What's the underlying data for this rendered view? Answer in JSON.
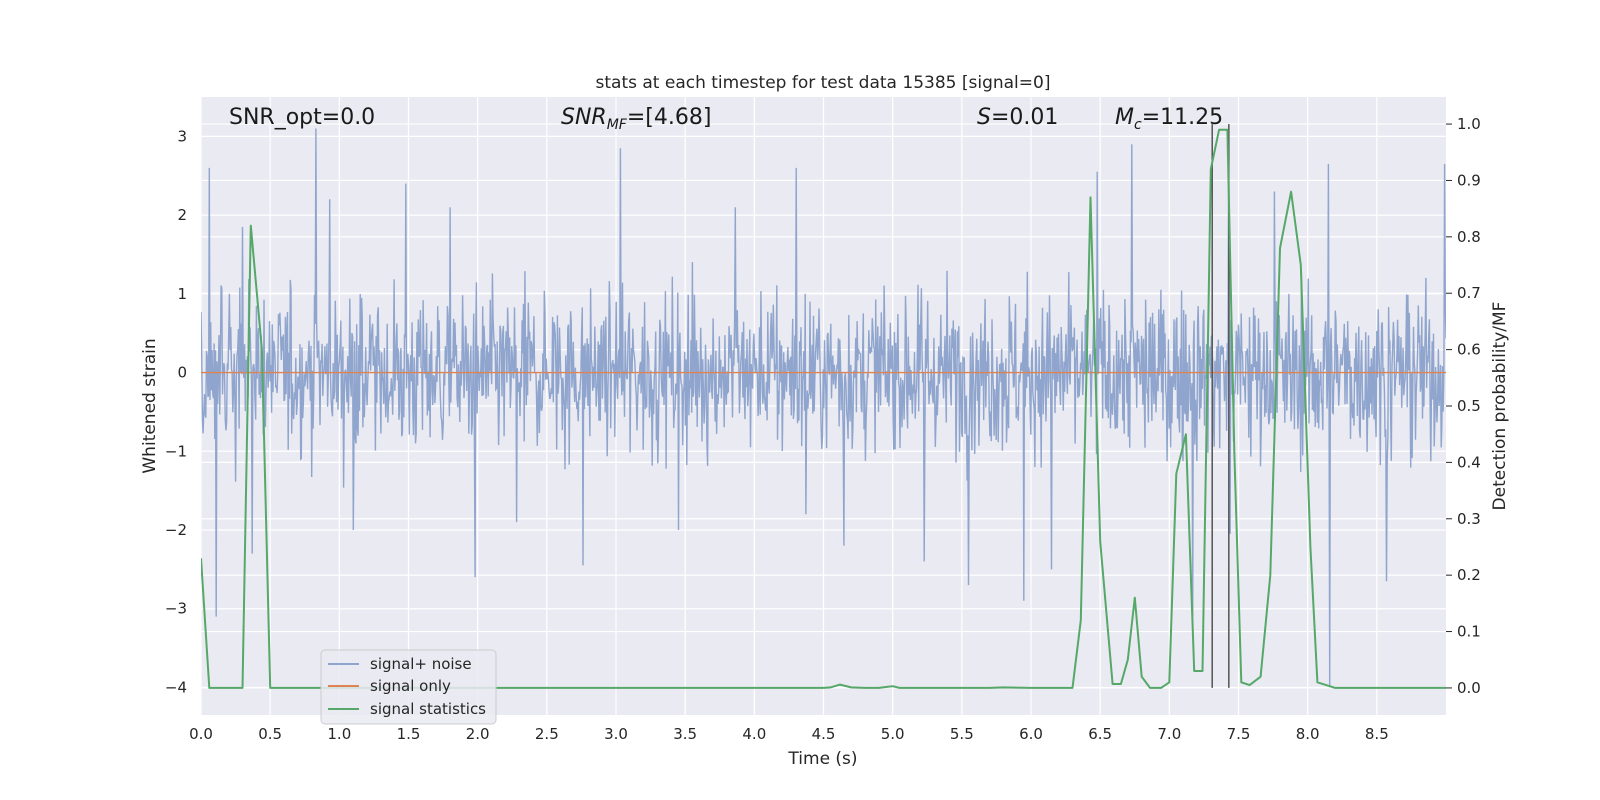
{
  "chart_data": {
    "type": "line",
    "title": "stats at each timestep for test data 15385 [signal=0]",
    "xlabel": "Time (s)",
    "ylabel": "Whitened strain",
    "y2label": "Detection probability/MF",
    "xlim": [
      0,
      9.0
    ],
    "ylim": [
      -4.35,
      3.5
    ],
    "y2lim": [
      -0.048,
      1.048
    ],
    "xticks": [
      0.0,
      0.5,
      1.0,
      1.5,
      2.0,
      2.5,
      3.0,
      3.5,
      4.0,
      4.5,
      5.0,
      5.5,
      6.0,
      6.5,
      7.0,
      7.5,
      8.0,
      8.5
    ],
    "xtick_labels": [
      "0.0",
      "0.5",
      "1.0",
      "1.5",
      "2.0",
      "2.5",
      "3.0",
      "3.5",
      "4.0",
      "4.5",
      "5.0",
      "5.5",
      "6.0",
      "6.5",
      "7.0",
      "7.5",
      "8.0",
      "8.5"
    ],
    "yticks": [
      3,
      2,
      1,
      0,
      -1,
      -2,
      -3,
      -4
    ],
    "ytick_labels": [
      "3",
      "2",
      "1",
      "0",
      "−1",
      "−2",
      "−3",
      "−4"
    ],
    "y2ticks": [
      1.0,
      0.9,
      0.8,
      0.7,
      0.6,
      0.5,
      0.4,
      0.3,
      0.2,
      0.1,
      0.0
    ],
    "y2tick_labels": [
      "1.0",
      "0.9",
      "0.8",
      "0.7",
      "0.6",
      "0.5",
      "0.4",
      "0.3",
      "0.2",
      "0.1",
      "0.0"
    ],
    "grid": true,
    "legend_position": "lower-left",
    "annotations": {
      "snr_opt": "SNR_opt=0.0",
      "snr_mf_base": "SNR",
      "snr_mf_sub": "MF",
      "snr_mf_rest": "=[4.68]",
      "s_var": "S",
      "s_rest": "=0.01",
      "mc_base": "M",
      "mc_sub": "c",
      "mc_rest": "=11.25"
    },
    "vlines_x": [
      7.31,
      7.43
    ],
    "noise_series": {
      "name": "signal+ noise",
      "color": "#8fa5cd",
      "sample_count": 1800,
      "envelope": 1.15,
      "spikes": [
        [
          0.06,
          2.6
        ],
        [
          0.11,
          -3.1
        ],
        [
          0.3,
          1.85
        ],
        [
          0.37,
          -2.3
        ],
        [
          0.83,
          3.1
        ],
        [
          0.93,
          2.2
        ],
        [
          1.1,
          -2.0
        ],
        [
          1.48,
          2.4
        ],
        [
          1.8,
          2.1
        ],
        [
          1.98,
          -2.6
        ],
        [
          2.28,
          -1.9
        ],
        [
          2.76,
          -2.45
        ],
        [
          3.03,
          2.85
        ],
        [
          3.45,
          -2.0
        ],
        [
          3.86,
          2.1
        ],
        [
          4.3,
          2.6
        ],
        [
          4.37,
          -1.8
        ],
        [
          4.65,
          -2.2
        ],
        [
          5.23,
          -2.4
        ],
        [
          5.55,
          -2.7
        ],
        [
          5.95,
          -2.9
        ],
        [
          6.15,
          -2.5
        ],
        [
          6.48,
          2.55
        ],
        [
          6.73,
          2.9
        ],
        [
          7.17,
          -3.1
        ],
        [
          7.43,
          3.1
        ],
        [
          7.44,
          -2.05
        ],
        [
          7.76,
          2.3
        ],
        [
          8.16,
          -4.0
        ],
        [
          8.15,
          2.65
        ],
        [
          8.57,
          -2.65
        ],
        [
          8.99,
          2.65
        ]
      ]
    },
    "signal_series": {
      "name": "signal only",
      "color": "#dd8452",
      "x": [
        0.0,
        9.0
      ],
      "y": [
        0.0,
        0.0
      ]
    },
    "stat_series": {
      "name": "signal statistics",
      "color": "#55a868",
      "x": [
        0.0,
        0.06,
        0.12,
        0.2,
        0.3,
        0.36,
        0.44,
        0.5,
        0.55,
        0.7,
        1.0,
        1.5,
        2.0,
        2.5,
        3.0,
        3.5,
        4.0,
        4.5,
        4.55,
        4.62,
        4.7,
        4.8,
        4.9,
        5.0,
        5.05,
        5.2,
        5.5,
        5.7,
        5.8,
        6.0,
        6.3,
        6.36,
        6.43,
        6.5,
        6.59,
        6.65,
        6.7,
        6.75,
        6.8,
        6.86,
        6.94,
        7.0,
        7.05,
        7.12,
        7.18,
        7.24,
        7.3,
        7.36,
        7.42,
        7.47,
        7.52,
        7.58,
        7.66,
        7.73,
        7.8,
        7.88,
        7.95,
        8.02,
        8.07,
        8.2,
        8.5,
        9.0
      ],
      "y": [
        0.23,
        0.0,
        0.0,
        0.0,
        0.0,
        0.82,
        0.6,
        0.0,
        0.0,
        0.0,
        0.0,
        0.0,
        0.0,
        0.0,
        0.0,
        0.0,
        0.0,
        0.0,
        0.001,
        0.006,
        0.001,
        0.0,
        0.0,
        0.003,
        0.0,
        0.0,
        0.0,
        0.0,
        0.001,
        0.0,
        0.0,
        0.12,
        0.87,
        0.26,
        0.007,
        0.007,
        0.05,
        0.16,
        0.02,
        0.0,
        0.0,
        0.01,
        0.38,
        0.45,
        0.03,
        0.03,
        0.92,
        0.99,
        0.99,
        0.42,
        0.01,
        0.005,
        0.02,
        0.2,
        0.78,
        0.88,
        0.75,
        0.25,
        0.01,
        0.0,
        0.0,
        0.0
      ]
    }
  }
}
